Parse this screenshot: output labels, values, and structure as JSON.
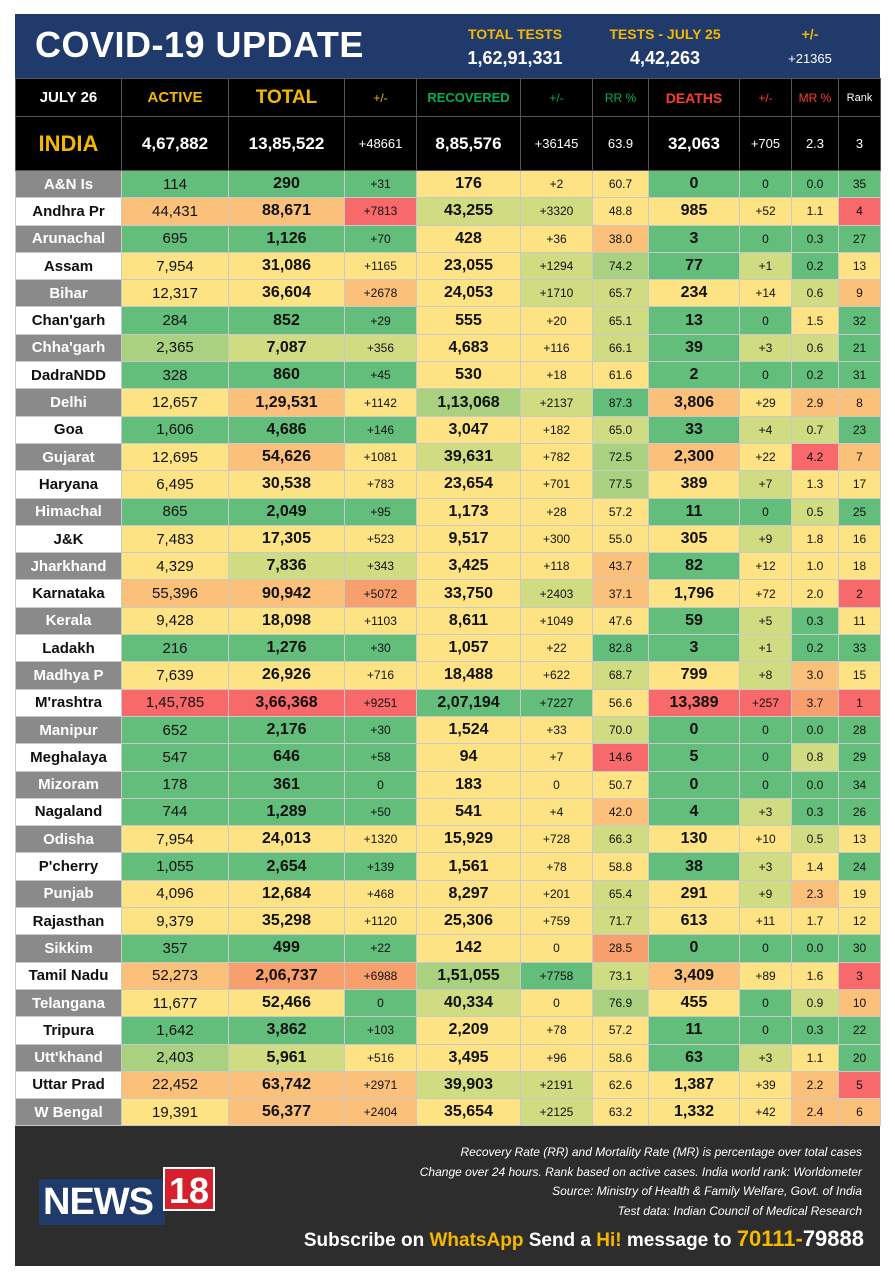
{
  "header": {
    "title": "COVID-19 UPDATE",
    "total_tests_label": "TOTAL TESTS",
    "total_tests_value": "1,62,91,331",
    "tests_day_label": "TESTS - JULY  25",
    "tests_day_value": "4,42,263",
    "tests_change_label": "+/-",
    "tests_change_value": "+21365"
  },
  "columns": {
    "date": "JULY 26",
    "active": "ACTIVE",
    "total": "TOTAL",
    "total_change": "+/-",
    "recovered": "RECOVERED",
    "recovered_change": "+/-",
    "rr": "RR %",
    "deaths": "DEATHS",
    "deaths_change": "+/-",
    "mr": "MR %",
    "rank": "Rank"
  },
  "india": {
    "state": "INDIA",
    "active": "4,67,882",
    "total": "13,85,522",
    "total_change": "+48661",
    "recovered": "8,85,576",
    "recovered_change": "+36145",
    "rr": "63.9",
    "deaths": "32,063",
    "deaths_change": "+705",
    "mr": "2.3",
    "rank": "3"
  },
  "colors": {
    "green": "#63be7b",
    "light_green": "#a9d17f",
    "yellow_green": "#cfdc82",
    "yellow": "#fde383",
    "orange": "#fbc17b",
    "salmon": "#f8a06d",
    "red": "#f8696b",
    "header_blue": "#1f3a6b",
    "accent_yellow": "#f5b800",
    "recovered_green": "#00b050",
    "deaths_red": "#ff3b30"
  },
  "rows": [
    {
      "state": "A&N Is",
      "active": "114",
      "total": "290",
      "total_change": "+31",
      "recovered": "176",
      "recovered_change": "+2",
      "rr": "60.7",
      "deaths": "0",
      "deaths_change": "0",
      "mr": "0.0",
      "rank": "35",
      "c": [
        "green",
        "green",
        "green",
        "yellow",
        "yellow",
        "yellow",
        "green",
        "green",
        "green",
        "green"
      ]
    },
    {
      "state": "Andhra Pr",
      "active": "44,431",
      "total": "88,671",
      "total_change": "+7813",
      "recovered": "43,255",
      "recovered_change": "+3320",
      "rr": "48.8",
      "deaths": "985",
      "deaths_change": "+52",
      "mr": "1.1",
      "rank": "4",
      "c": [
        "orange",
        "orange",
        "red",
        "yellow_green",
        "yellow_green",
        "yellow",
        "yellow",
        "yellow",
        "yellow",
        "red"
      ]
    },
    {
      "state": "Arunachal",
      "active": "695",
      "total": "1,126",
      "total_change": "+70",
      "recovered": "428",
      "recovered_change": "+36",
      "rr": "38.0",
      "deaths": "3",
      "deaths_change": "0",
      "mr": "0.3",
      "rank": "27",
      "c": [
        "green",
        "green",
        "green",
        "yellow",
        "yellow",
        "orange",
        "green",
        "green",
        "green",
        "green"
      ]
    },
    {
      "state": "Assam",
      "active": "7,954",
      "total": "31,086",
      "total_change": "+1165",
      "recovered": "23,055",
      "recovered_change": "+1294",
      "rr": "74.2",
      "deaths": "77",
      "deaths_change": "+1",
      "mr": "0.2",
      "rank": "13",
      "c": [
        "yellow",
        "yellow",
        "yellow",
        "yellow",
        "yellow_green",
        "light_green",
        "green",
        "yellow_green",
        "green",
        "yellow"
      ]
    },
    {
      "state": "Bihar",
      "active": "12,317",
      "total": "36,604",
      "total_change": "+2678",
      "recovered": "24,053",
      "recovered_change": "+1710",
      "rr": "65.7",
      "deaths": "234",
      "deaths_change": "+14",
      "mr": "0.6",
      "rank": "9",
      "c": [
        "yellow",
        "yellow",
        "orange",
        "yellow",
        "yellow_green",
        "yellow_green",
        "yellow",
        "yellow",
        "yellow_green",
        "orange"
      ]
    },
    {
      "state": "Chan'garh",
      "active": "284",
      "total": "852",
      "total_change": "+29",
      "recovered": "555",
      "recovered_change": "+20",
      "rr": "65.1",
      "deaths": "13",
      "deaths_change": "0",
      "mr": "1.5",
      "rank": "32",
      "c": [
        "green",
        "green",
        "green",
        "yellow",
        "yellow",
        "yellow_green",
        "green",
        "green",
        "yellow",
        "green"
      ]
    },
    {
      "state": "Chha'garh",
      "active": "2,365",
      "total": "7,087",
      "total_change": "+356",
      "recovered": "4,683",
      "recovered_change": "+116",
      "rr": "66.1",
      "deaths": "39",
      "deaths_change": "+3",
      "mr": "0.6",
      "rank": "21",
      "c": [
        "light_green",
        "yellow_green",
        "yellow_green",
        "yellow",
        "yellow",
        "yellow_green",
        "green",
        "yellow_green",
        "yellow_green",
        "green"
      ]
    },
    {
      "state": "DadraNDD",
      "active": "328",
      "total": "860",
      "total_change": "+45",
      "recovered": "530",
      "recovered_change": "+18",
      "rr": "61.6",
      "deaths": "2",
      "deaths_change": "0",
      "mr": "0.2",
      "rank": "31",
      "c": [
        "green",
        "green",
        "green",
        "yellow",
        "yellow",
        "yellow",
        "green",
        "green",
        "green",
        "green"
      ]
    },
    {
      "state": "Delhi",
      "active": "12,657",
      "total": "1,29,531",
      "total_change": "+1142",
      "recovered": "1,13,068",
      "recovered_change": "+2137",
      "rr": "87.3",
      "deaths": "3,806",
      "deaths_change": "+29",
      "mr": "2.9",
      "rank": "8",
      "c": [
        "yellow",
        "orange",
        "yellow",
        "light_green",
        "yellow_green",
        "green",
        "orange",
        "yellow",
        "orange",
        "orange"
      ]
    },
    {
      "state": "Goa",
      "active": "1,606",
      "total": "4,686",
      "total_change": "+146",
      "recovered": "3,047",
      "recovered_change": "+182",
      "rr": "65.0",
      "deaths": "33",
      "deaths_change": "+4",
      "mr": "0.7",
      "rank": "23",
      "c": [
        "green",
        "green",
        "green",
        "yellow",
        "yellow",
        "yellow_green",
        "green",
        "yellow_green",
        "yellow_green",
        "green"
      ]
    },
    {
      "state": "Gujarat",
      "active": "12,695",
      "total": "54,626",
      "total_change": "+1081",
      "recovered": "39,631",
      "recovered_change": "+782",
      "rr": "72.5",
      "deaths": "2,300",
      "deaths_change": "+22",
      "mr": "4.2",
      "rank": "7",
      "c": [
        "yellow",
        "orange",
        "yellow",
        "yellow_green",
        "yellow",
        "light_green",
        "orange",
        "yellow",
        "red",
        "orange"
      ]
    },
    {
      "state": "Haryana",
      "active": "6,495",
      "total": "30,538",
      "total_change": "+783",
      "recovered": "23,654",
      "recovered_change": "+701",
      "rr": "77.5",
      "deaths": "389",
      "deaths_change": "+7",
      "mr": "1.3",
      "rank": "17",
      "c": [
        "yellow",
        "yellow",
        "yellow",
        "yellow",
        "yellow",
        "light_green",
        "yellow",
        "yellow_green",
        "yellow",
        "yellow"
      ]
    },
    {
      "state": "Himachal",
      "active": "865",
      "total": "2,049",
      "total_change": "+95",
      "recovered": "1,173",
      "recovered_change": "+28",
      "rr": "57.2",
      "deaths": "11",
      "deaths_change": "0",
      "mr": "0.5",
      "rank": "25",
      "c": [
        "green",
        "green",
        "green",
        "yellow",
        "yellow",
        "yellow",
        "green",
        "green",
        "yellow_green",
        "green"
      ]
    },
    {
      "state": "J&K",
      "active": "7,483",
      "total": "17,305",
      "total_change": "+523",
      "recovered": "9,517",
      "recovered_change": "+300",
      "rr": "55.0",
      "deaths": "305",
      "deaths_change": "+9",
      "mr": "1.8",
      "rank": "16",
      "c": [
        "yellow",
        "yellow",
        "yellow",
        "yellow",
        "yellow",
        "yellow",
        "yellow",
        "yellow_green",
        "yellow",
        "yellow"
      ]
    },
    {
      "state": "Jharkhand",
      "active": "4,329",
      "total": "7,836",
      "total_change": "+343",
      "recovered": "3,425",
      "recovered_change": "+118",
      "rr": "43.7",
      "deaths": "82",
      "deaths_change": "+12",
      "mr": "1.0",
      "rank": "18",
      "c": [
        "yellow",
        "yellow_green",
        "yellow_green",
        "yellow",
        "yellow",
        "orange",
        "green",
        "yellow",
        "yellow",
        "yellow"
      ]
    },
    {
      "state": "Karnataka",
      "active": "55,396",
      "total": "90,942",
      "total_change": "+5072",
      "recovered": "33,750",
      "recovered_change": "+2403",
      "rr": "37.1",
      "deaths": "1,796",
      "deaths_change": "+72",
      "mr": "2.0",
      "rank": "2",
      "c": [
        "orange",
        "orange",
        "salmon",
        "yellow",
        "yellow_green",
        "orange",
        "yellow",
        "yellow",
        "yellow",
        "red"
      ]
    },
    {
      "state": "Kerala",
      "active": "9,428",
      "total": "18,098",
      "total_change": "+1103",
      "recovered": "8,611",
      "recovered_change": "+1049",
      "rr": "47.6",
      "deaths": "59",
      "deaths_change": "+5",
      "mr": "0.3",
      "rank": "11",
      "c": [
        "yellow",
        "yellow",
        "yellow",
        "yellow",
        "yellow",
        "yellow",
        "green",
        "yellow_green",
        "green",
        "yellow"
      ]
    },
    {
      "state": "Ladakh",
      "active": "216",
      "total": "1,276",
      "total_change": "+30",
      "recovered": "1,057",
      "recovered_change": "+22",
      "rr": "82.8",
      "deaths": "3",
      "deaths_change": "+1",
      "mr": "0.2",
      "rank": "33",
      "c": [
        "green",
        "green",
        "green",
        "yellow",
        "yellow",
        "green",
        "green",
        "yellow_green",
        "green",
        "green"
      ]
    },
    {
      "state": "Madhya P",
      "active": "7,639",
      "total": "26,926",
      "total_change": "+716",
      "recovered": "18,488",
      "recovered_change": "+622",
      "rr": "68.7",
      "deaths": "799",
      "deaths_change": "+8",
      "mr": "3.0",
      "rank": "15",
      "c": [
        "yellow",
        "yellow",
        "yellow",
        "yellow",
        "yellow",
        "yellow_green",
        "yellow",
        "yellow_green",
        "orange",
        "yellow"
      ]
    },
    {
      "state": "M'rashtra",
      "active": "1,45,785",
      "total": "3,66,368",
      "total_change": "+9251",
      "recovered": "2,07,194",
      "recovered_change": "+7227",
      "rr": "56.6",
      "deaths": "13,389",
      "deaths_change": "+257",
      "mr": "3.7",
      "rank": "1",
      "c": [
        "red",
        "red",
        "red",
        "green",
        "green",
        "yellow",
        "red",
        "red",
        "salmon",
        "red"
      ]
    },
    {
      "state": "Manipur",
      "active": "652",
      "total": "2,176",
      "total_change": "+30",
      "recovered": "1,524",
      "recovered_change": "+33",
      "rr": "70.0",
      "deaths": "0",
      "deaths_change": "0",
      "mr": "0.0",
      "rank": "28",
      "c": [
        "green",
        "green",
        "green",
        "yellow",
        "yellow",
        "yellow_green",
        "green",
        "green",
        "green",
        "green"
      ]
    },
    {
      "state": "Meghalaya",
      "active": "547",
      "total": "646",
      "total_change": "+58",
      "recovered": "94",
      "recovered_change": "+7",
      "rr": "14.6",
      "deaths": "5",
      "deaths_change": "0",
      "mr": "0.8",
      "rank": "29",
      "c": [
        "green",
        "green",
        "green",
        "yellow",
        "yellow",
        "red",
        "green",
        "green",
        "yellow_green",
        "green"
      ]
    },
    {
      "state": "Mizoram",
      "active": "178",
      "total": "361",
      "total_change": "0",
      "recovered": "183",
      "recovered_change": "0",
      "rr": "50.7",
      "deaths": "0",
      "deaths_change": "0",
      "mr": "0.0",
      "rank": "34",
      "c": [
        "green",
        "green",
        "green",
        "yellow",
        "yellow",
        "yellow",
        "green",
        "green",
        "green",
        "green"
      ]
    },
    {
      "state": "Nagaland",
      "active": "744",
      "total": "1,289",
      "total_change": "+50",
      "recovered": "541",
      "recovered_change": "+4",
      "rr": "42.0",
      "deaths": "4",
      "deaths_change": "+3",
      "mr": "0.3",
      "rank": "26",
      "c": [
        "green",
        "green",
        "green",
        "yellow",
        "yellow",
        "orange",
        "green",
        "yellow_green",
        "green",
        "green"
      ]
    },
    {
      "state": "Odisha",
      "active": "7,954",
      "total": "24,013",
      "total_change": "+1320",
      "recovered": "15,929",
      "recovered_change": "+728",
      "rr": "66.3",
      "deaths": "130",
      "deaths_change": "+10",
      "mr": "0.5",
      "rank": "13",
      "c": [
        "yellow",
        "yellow",
        "yellow",
        "yellow",
        "yellow",
        "yellow_green",
        "yellow",
        "yellow",
        "yellow_green",
        "yellow"
      ]
    },
    {
      "state": "P'cherry",
      "active": "1,055",
      "total": "2,654",
      "total_change": "+139",
      "recovered": "1,561",
      "recovered_change": "+78",
      "rr": "58.8",
      "deaths": "38",
      "deaths_change": "+3",
      "mr": "1.4",
      "rank": "24",
      "c": [
        "green",
        "green",
        "green",
        "yellow",
        "yellow",
        "yellow",
        "green",
        "yellow_green",
        "yellow",
        "green"
      ]
    },
    {
      "state": "Punjab",
      "active": "4,096",
      "total": "12,684",
      "total_change": "+468",
      "recovered": "8,297",
      "recovered_change": "+201",
      "rr": "65.4",
      "deaths": "291",
      "deaths_change": "+9",
      "mr": "2.3",
      "rank": "19",
      "c": [
        "yellow",
        "yellow",
        "yellow",
        "yellow",
        "yellow",
        "yellow_green",
        "yellow",
        "yellow_green",
        "orange",
        "yellow"
      ]
    },
    {
      "state": "Rajasthan",
      "active": "9,379",
      "total": "35,298",
      "total_change": "+1120",
      "recovered": "25,306",
      "recovered_change": "+759",
      "rr": "71.7",
      "deaths": "613",
      "deaths_change": "+11",
      "mr": "1.7",
      "rank": "12",
      "c": [
        "yellow",
        "yellow",
        "yellow",
        "yellow",
        "yellow",
        "yellow_green",
        "yellow",
        "yellow",
        "yellow",
        "yellow"
      ]
    },
    {
      "state": "Sikkim",
      "active": "357",
      "total": "499",
      "total_change": "+22",
      "recovered": "142",
      "recovered_change": "0",
      "rr": "28.5",
      "deaths": "0",
      "deaths_change": "0",
      "mr": "0.0",
      "rank": "30",
      "c": [
        "green",
        "green",
        "green",
        "yellow",
        "yellow",
        "salmon",
        "green",
        "green",
        "green",
        "green"
      ]
    },
    {
      "state": "Tamil Nadu",
      "active": "52,273",
      "total": "2,06,737",
      "total_change": "+6988",
      "recovered": "1,51,055",
      "recovered_change": "+7758",
      "rr": "73.1",
      "deaths": "3,409",
      "deaths_change": "+89",
      "mr": "1.6",
      "rank": "3",
      "c": [
        "orange",
        "salmon",
        "salmon",
        "light_green",
        "green",
        "yellow_green",
        "orange",
        "yellow",
        "yellow",
        "red"
      ]
    },
    {
      "state": "Telangana",
      "active": "11,677",
      "total": "52,466",
      "total_change": "0",
      "recovered": "40,334",
      "recovered_change": "0",
      "rr": "76.9",
      "deaths": "455",
      "deaths_change": "0",
      "mr": "0.9",
      "rank": "10",
      "c": [
        "yellow",
        "yellow",
        "green",
        "yellow_green",
        "yellow",
        "light_green",
        "yellow",
        "green",
        "yellow_green",
        "orange"
      ]
    },
    {
      "state": "Tripura",
      "active": "1,642",
      "total": "3,862",
      "total_change": "+103",
      "recovered": "2,209",
      "recovered_change": "+78",
      "rr": "57.2",
      "deaths": "11",
      "deaths_change": "0",
      "mr": "0.3",
      "rank": "22",
      "c": [
        "green",
        "green",
        "green",
        "yellow",
        "yellow",
        "yellow",
        "green",
        "green",
        "green",
        "green"
      ]
    },
    {
      "state": "Utt'khand",
      "active": "2,403",
      "total": "5,961",
      "total_change": "+516",
      "recovered": "3,495",
      "recovered_change": "+96",
      "rr": "58.6",
      "deaths": "63",
      "deaths_change": "+3",
      "mr": "1.1",
      "rank": "20",
      "c": [
        "light_green",
        "yellow_green",
        "yellow",
        "yellow",
        "yellow",
        "yellow",
        "green",
        "yellow_green",
        "yellow",
        "green"
      ]
    },
    {
      "state": "Uttar Prad",
      "active": "22,452",
      "total": "63,742",
      "total_change": "+2971",
      "recovered": "39,903",
      "recovered_change": "+2191",
      "rr": "62.6",
      "deaths": "1,387",
      "deaths_change": "+39",
      "mr": "2.2",
      "rank": "5",
      "c": [
        "orange",
        "orange",
        "orange",
        "yellow_green",
        "yellow_green",
        "yellow",
        "yellow",
        "yellow",
        "orange",
        "red"
      ]
    },
    {
      "state": "W Bengal",
      "active": "19,391",
      "total": "56,377",
      "total_change": "+2404",
      "recovered": "35,654",
      "recovered_change": "+2125",
      "rr": "63.2",
      "deaths": "1,332",
      "deaths_change": "+42",
      "mr": "2.4",
      "rank": "6",
      "c": [
        "yellow",
        "orange",
        "orange",
        "yellow",
        "yellow_green",
        "yellow",
        "yellow",
        "yellow",
        "orange",
        "orange"
      ]
    }
  ],
  "footer": {
    "note1": "Recovery Rate (RR) and Mortality Rate (MR) is percentage over total cases",
    "note2": "Change over 24 hours. Rank based on active cases. India world rank: Worldometer",
    "note3": "Source: Ministry of Health & Family Welfare, Govt. of India",
    "note4": "Test data: Indian Council of Medical Research",
    "logo_news": "NEWS",
    "logo_18": "18",
    "sub_prefix": "Subscribe on ",
    "sub_app": "WhatsApp",
    "sub_send": " Send a ",
    "sub_hi": "Hi!",
    "sub_msg": " message to ",
    "sub_phone_a": "70111-",
    "sub_phone_b": "79888"
  }
}
